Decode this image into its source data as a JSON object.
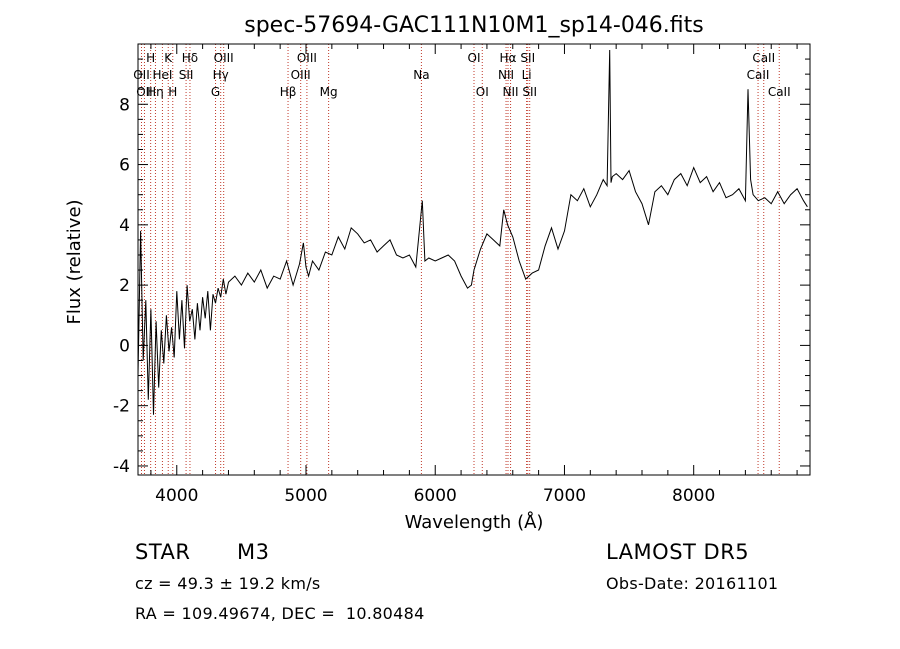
{
  "chart_data": {
    "type": "line",
    "title": "spec-57694-GAC111N10M1_sp14-046.fits",
    "xlabel": "Wavelength (Å)",
    "ylabel": "Flux (relative)",
    "xlim": [
      3700,
      8900
    ],
    "ylim": [
      -4.3,
      10.0
    ],
    "xticks": [
      4000,
      5000,
      6000,
      7000,
      8000
    ],
    "yticks": [
      -4,
      -2,
      0,
      2,
      4,
      6,
      8
    ],
    "grid": false,
    "series": [
      {
        "x": [
          3700,
          3720,
          3740,
          3760,
          3780,
          3800,
          3820,
          3840,
          3860,
          3880,
          3900,
          3920,
          3940,
          3960,
          3980,
          4000,
          4020,
          4040,
          4060,
          4080,
          4100,
          4120,
          4140,
          4160,
          4180,
          4200,
          4220,
          4240,
          4260,
          4280,
          4300,
          4320,
          4340,
          4360,
          4380,
          4400,
          4450,
          4500,
          4550,
          4600,
          4650,
          4700,
          4750,
          4800,
          4850,
          4900,
          4950,
          4980,
          5000,
          5020,
          5050,
          5100,
          5150,
          5200,
          5250,
          5300,
          5350,
          5400,
          5450,
          5500,
          5550,
          5600,
          5650,
          5700,
          5750,
          5800,
          5850,
          5900,
          5920,
          5950,
          6000,
          6050,
          6100,
          6150,
          6200,
          6250,
          6280,
          6300,
          6350,
          6400,
          6450,
          6500,
          6530,
          6560,
          6600,
          6650,
          6700,
          6750,
          6800,
          6850,
          6900,
          6950,
          7000,
          7050,
          7100,
          7150,
          7200,
          7250,
          7300,
          7330,
          7350,
          7360,
          7370,
          7400,
          7450,
          7500,
          7550,
          7600,
          7650,
          7700,
          7750,
          7800,
          7850,
          7900,
          7950,
          8000,
          8050,
          8100,
          8150,
          8200,
          8250,
          8300,
          8350,
          8400,
          8420,
          8440,
          8460,
          8500,
          8550,
          8600,
          8650,
          8700,
          8750,
          8800,
          8850,
          8880
        ],
        "y": [
          -1.0,
          3.8,
          -0.5,
          1.5,
          -1.8,
          1.2,
          -2.3,
          0.8,
          -1.4,
          0.5,
          -0.6,
          1.0,
          -0.2,
          0.6,
          -0.4,
          1.8,
          0.2,
          1.5,
          -0.1,
          2.0,
          0.8,
          1.2,
          0.2,
          1.4,
          0.5,
          1.6,
          0.9,
          1.8,
          0.5,
          1.7,
          1.4,
          1.9,
          1.6,
          2.2,
          1.7,
          2.1,
          2.3,
          2.0,
          2.4,
          2.1,
          2.5,
          1.9,
          2.3,
          2.2,
          2.8,
          2.0,
          2.7,
          3.4,
          2.6,
          2.3,
          2.8,
          2.5,
          3.1,
          3.0,
          3.6,
          3.2,
          3.9,
          3.7,
          3.4,
          3.5,
          3.1,
          3.3,
          3.5,
          3.0,
          2.9,
          3.0,
          2.6,
          4.8,
          2.8,
          2.9,
          2.8,
          2.9,
          3.0,
          2.8,
          2.3,
          1.9,
          2.0,
          2.5,
          3.2,
          3.7,
          3.5,
          3.3,
          4.5,
          4.0,
          3.6,
          2.8,
          2.2,
          2.4,
          2.5,
          3.3,
          3.9,
          3.2,
          3.8,
          5.0,
          4.8,
          5.2,
          4.6,
          5.0,
          5.5,
          5.3,
          9.8,
          5.4,
          5.6,
          5.7,
          5.5,
          5.8,
          5.1,
          4.7,
          4.0,
          5.1,
          5.3,
          5.0,
          5.5,
          5.7,
          5.3,
          5.9,
          5.4,
          5.6,
          5.1,
          5.4,
          4.9,
          5.0,
          5.2,
          4.8,
          8.5,
          5.5,
          5.0,
          4.8,
          4.9,
          4.7,
          5.1,
          4.7,
          5.0,
          5.2,
          4.8,
          4.6
        ]
      }
    ],
    "lines": [
      {
        "x": 3727,
        "label": "OII",
        "row": 1
      },
      {
        "x": 3750,
        "label": "OII",
        "row": 2
      },
      {
        "x": 3798,
        "label": "H",
        "row": 0
      },
      {
        "x": 3835,
        "label": "Hη",
        "row": 2
      },
      {
        "x": 3889,
        "label": "HeI",
        "row": 1
      },
      {
        "x": 3934,
        "label": "K",
        "row": 0
      },
      {
        "x": 3969,
        "label": "H",
        "row": 2
      },
      {
        "x": 4072,
        "label": "SII",
        "row": 1
      },
      {
        "x": 4102,
        "label": "Hδ",
        "row": 0
      },
      {
        "x": 4300,
        "label": "G",
        "row": 2
      },
      {
        "x": 4340,
        "label": "Hγ",
        "row": 1
      },
      {
        "x": 4363,
        "label": "OIII",
        "row": 0
      },
      {
        "x": 4861,
        "label": "Hβ",
        "row": 2
      },
      {
        "x": 4959,
        "label": "OIII",
        "row": 1
      },
      {
        "x": 5007,
        "label": "OIII",
        "row": 0
      },
      {
        "x": 5175,
        "label": "Mg",
        "row": 2
      },
      {
        "x": 5893,
        "label": "Na",
        "row": 1
      },
      {
        "x": 6300,
        "label": "OI",
        "row": 0
      },
      {
        "x": 6364,
        "label": "OI",
        "row": 2
      },
      {
        "x": 6548,
        "label": "NII",
        "row": 1
      },
      {
        "x": 6563,
        "label": "Hα",
        "row": 0
      },
      {
        "x": 6583,
        "label": "NII",
        "row": 2
      },
      {
        "x": 6707,
        "label": "Li",
        "row": 1
      },
      {
        "x": 6716,
        "label": "SII",
        "row": 0
      },
      {
        "x": 6731,
        "label": "SII",
        "row": 2
      },
      {
        "x": 8498,
        "label": "CaII",
        "row": 1
      },
      {
        "x": 8542,
        "label": "CaII",
        "row": 0
      },
      {
        "x": 8662,
        "label": "CaII",
        "row": 2
      }
    ]
  },
  "info": {
    "class_label": "STAR",
    "subclass": "M3",
    "survey": "LAMOST DR5",
    "cz": "cz = 49.3 ± 19.2 km/s",
    "obs_date": "Obs-Date: 20161101",
    "coords": "RA = 109.49674, DEC =  10.80484"
  }
}
